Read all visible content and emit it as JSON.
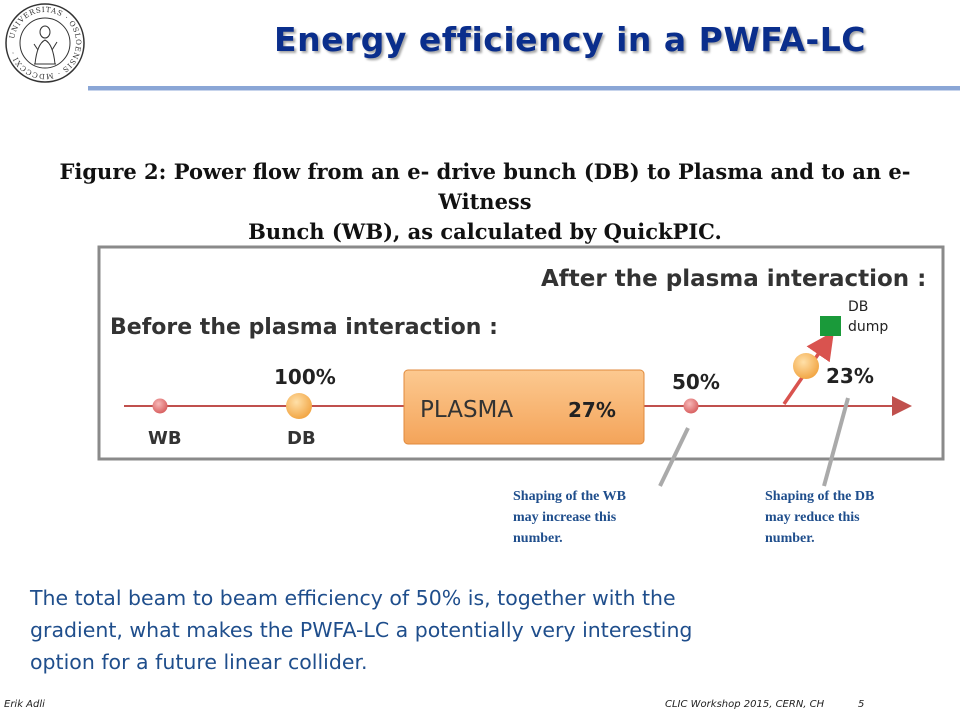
{
  "header": {
    "logo_icon": "university-of-oslo-seal-icon",
    "title": "Energy efficiency in a PWFA-LC",
    "accent_color": "#0a2e8c"
  },
  "figure": {
    "caption_line1": "Figure 2: Power flow from an e- drive bunch (DB) to Plasma and to an e- Witness",
    "caption_line2": "Bunch (WB), as calculated by QuickPIC.",
    "before_label": "Before the plasma interaction :",
    "after_label": "After the plasma interaction :",
    "wb_label": "WB",
    "db_label": "DB",
    "db_percent": "100%",
    "plasma_label": "PLASMA",
    "plasma_percent": "27%",
    "wb_after_percent": "50%",
    "db_after_percent": "23%",
    "dump_label_1": "DB",
    "dump_label_2": "dump"
  },
  "notes": {
    "wb_note": [
      "Shaping of the WB",
      "may increase this",
      "number."
    ],
    "db_note": [
      "Shaping of the DB",
      "may reduce this",
      "number."
    ]
  },
  "body_text": [
    "The total beam to beam efficiency of 50% is, together with the",
    "gradient, what makes the PWFA-LC a potentially very interesting",
    "option for a future linear collider."
  ],
  "footer": {
    "author": "Erik Adli",
    "event": "CLIC Workshop 2015, CERN, CH",
    "page_number": "5"
  }
}
